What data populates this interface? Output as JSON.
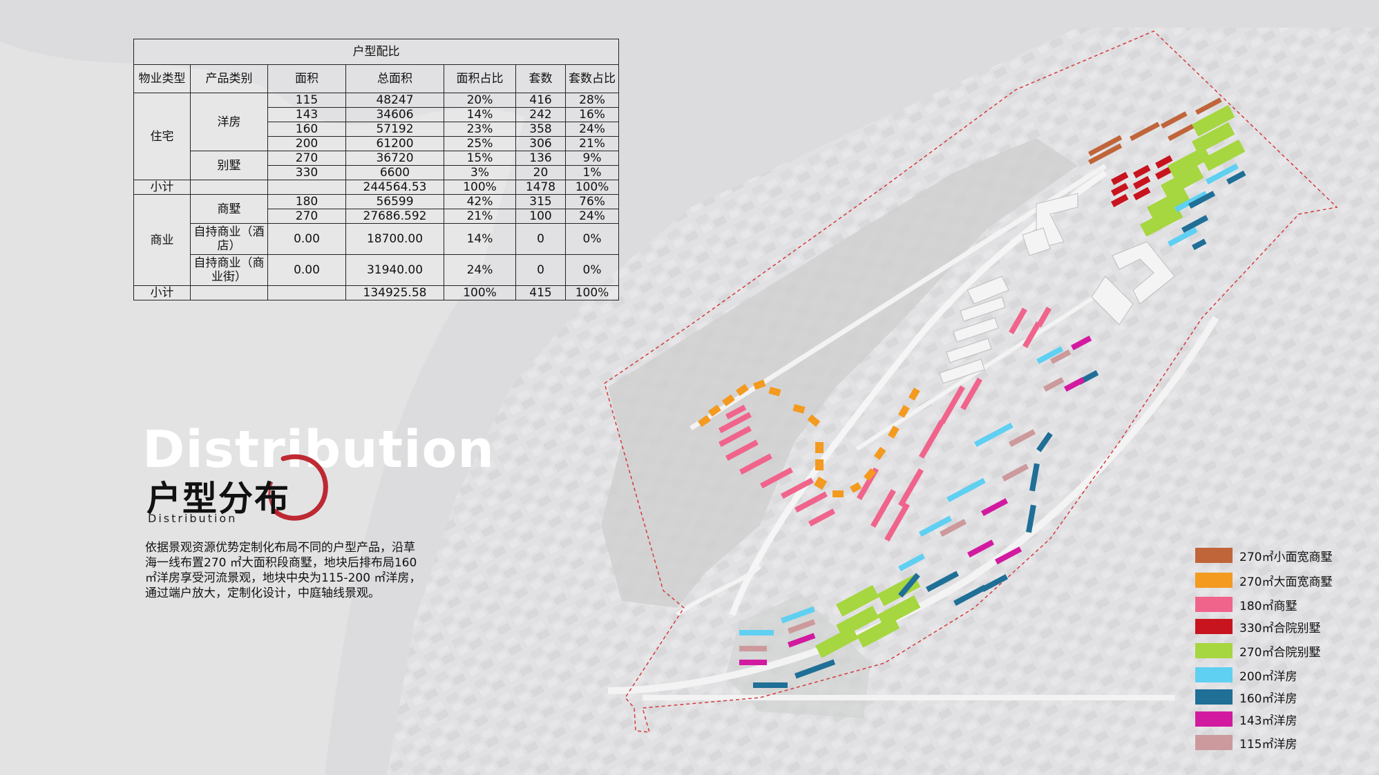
{
  "table": {
    "title": "户型配比",
    "headers": [
      "物业类型",
      "产品类别",
      "面积",
      "总面积",
      "面积占比",
      "套数",
      "套数占比"
    ],
    "residential": {
      "type": "住宅",
      "yangfang": {
        "category": "洋房",
        "rows": [
          [
            "115",
            "48247",
            "20%",
            "416",
            "28%"
          ],
          [
            "143",
            "34606",
            "14%",
            "242",
            "16%"
          ],
          [
            "160",
            "57192",
            "23%",
            "358",
            "24%"
          ],
          [
            "200",
            "61200",
            "25%",
            "306",
            "21%"
          ]
        ]
      },
      "villa": {
        "category": "别墅",
        "rows": [
          [
            "270",
            "36720",
            "15%",
            "136",
            "9%"
          ],
          [
            "330",
            "6600",
            "3%",
            "20",
            "1%"
          ]
        ]
      },
      "subtotal": [
        "小计",
        "",
        "244564.53",
        "100%",
        "1478",
        "100%"
      ]
    },
    "commercial": {
      "type": "商业",
      "shangshu": {
        "category": "商墅",
        "rows": [
          [
            "180",
            "56599",
            "42%",
            "315",
            "76%"
          ],
          [
            "270",
            "27686.592",
            "21%",
            "100",
            "24%"
          ]
        ]
      },
      "hotel": [
        "自持商业（酒店）",
        "0.00",
        "18700.00",
        "14%",
        "0",
        "0%"
      ],
      "street": [
        "自持商业（商业街）",
        "0.00",
        "31940.00",
        "24%",
        "0",
        "0%"
      ],
      "subtotal": [
        "小计",
        "",
        "134925.58",
        "100%",
        "415",
        "100%"
      ]
    }
  },
  "heading": {
    "english": "Distribution",
    "chinese": "户型分布",
    "sub": "Distribution"
  },
  "description": "依据景观资源优势定制化布局不同的户型产品，沿草海一线布置270 ㎡大面积段商墅，地块后排布局160 ㎡洋房享受河流景观，地块中央为115-200 ㎡洋房，通过端户放大，定制化设计，中庭轴线景观。",
  "legend": [
    {
      "label": "270㎡小面宽商墅",
      "color": "#c0643a"
    },
    {
      "label": "270㎡大面宽商墅",
      "color": "#f39a1f"
    },
    {
      "label": "180㎡商墅",
      "color": "#f0648c"
    },
    {
      "label": "330㎡合院别墅",
      "color": "#c8141e"
    },
    {
      "label": "270㎡合院别墅",
      "color": "#a6d640"
    },
    {
      "label": "200㎡洋房",
      "color": "#5fd0f2"
    },
    {
      "label": "160㎡洋房",
      "color": "#1f6f96"
    },
    {
      "label": "143㎡洋房",
      "color": "#d21aa0"
    },
    {
      "label": "115㎡洋房",
      "color": "#cc9a9c"
    }
  ]
}
